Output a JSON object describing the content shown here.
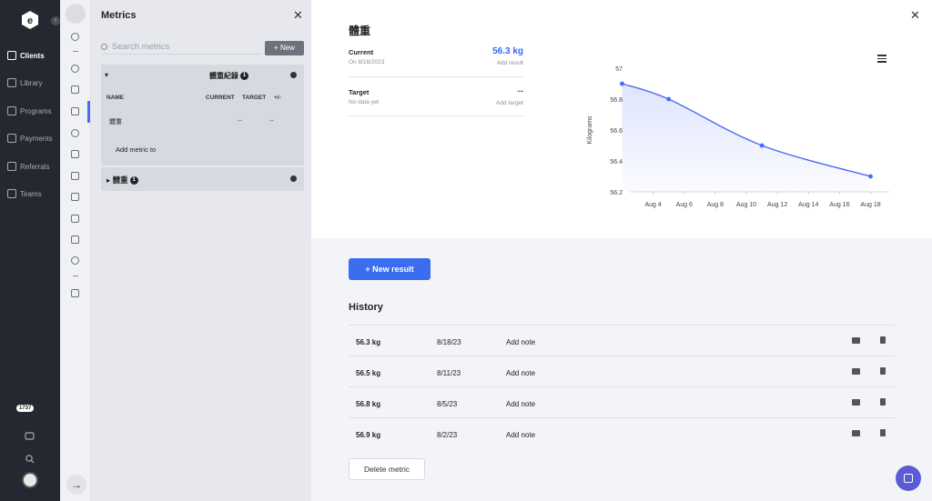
{
  "nav": {
    "items": [
      {
        "label": "Clients",
        "icon": "clients-icon",
        "active": true
      },
      {
        "label": "Library",
        "icon": "library-icon",
        "active": false
      },
      {
        "label": "Programs",
        "icon": "programs-icon",
        "active": false
      },
      {
        "label": "Payments",
        "icon": "payments-icon",
        "active": false
      },
      {
        "label": "Referrals",
        "icon": "referrals-icon",
        "active": false
      },
      {
        "label": "Teams",
        "icon": "teams-icon",
        "active": false
      }
    ],
    "badge": "1737"
  },
  "metrics_panel": {
    "title": "Metrics",
    "search_placeholder": "Search metrics",
    "new_label": "+ New",
    "group1": {
      "name": "體重紀錄",
      "count": "1",
      "columns": [
        "NAME",
        "CURRENT",
        "TARGET",
        "+/-"
      ],
      "row": {
        "name": "體重",
        "current": "--",
        "target": "--"
      },
      "add_metric": "Add metric to"
    },
    "group2": {
      "name": "體重",
      "count": "1"
    }
  },
  "detail": {
    "title": "體重",
    "current_label": "Current",
    "current_date": "On 8/18/2023",
    "current_value": "56.3 kg",
    "current_link": "Add result",
    "target_label": "Target",
    "target_sub": "No data yet",
    "target_value": "--",
    "target_link": "Add target"
  },
  "chart_data": {
    "type": "line",
    "x": [
      "Aug 2",
      "Aug 5",
      "Aug 11",
      "Aug 18"
    ],
    "values": [
      56.9,
      56.8,
      56.5,
      56.3
    ],
    "tick_labels_x": [
      "Aug 4",
      "Aug 6",
      "Aug 8",
      "Aug 10",
      "Aug 12",
      "Aug 14",
      "Aug 16",
      "Aug 18"
    ],
    "tick_labels_y": [
      "57",
      "56.8",
      "56.6",
      "56.4",
      "56.2"
    ],
    "ylabel": "Kilograms",
    "ylim": [
      56.2,
      57
    ],
    "line_color": "#4a6cf7"
  },
  "history": {
    "new_result_label": "+ New result",
    "title": "History",
    "rows": [
      {
        "value": "56.3 kg",
        "date": "8/18/23",
        "note": "Add note"
      },
      {
        "value": "56.5 kg",
        "date": "8/11/23",
        "note": "Add note"
      },
      {
        "value": "56.8 kg",
        "date": "8/5/23",
        "note": "Add note"
      },
      {
        "value": "56.9 kg",
        "date": "8/2/23",
        "note": "Add note"
      }
    ],
    "delete_label": "Delete metric"
  },
  "colors": {
    "accent": "#3a6df0",
    "nav_bg": "#252830",
    "chat": "#5b5bd6"
  }
}
